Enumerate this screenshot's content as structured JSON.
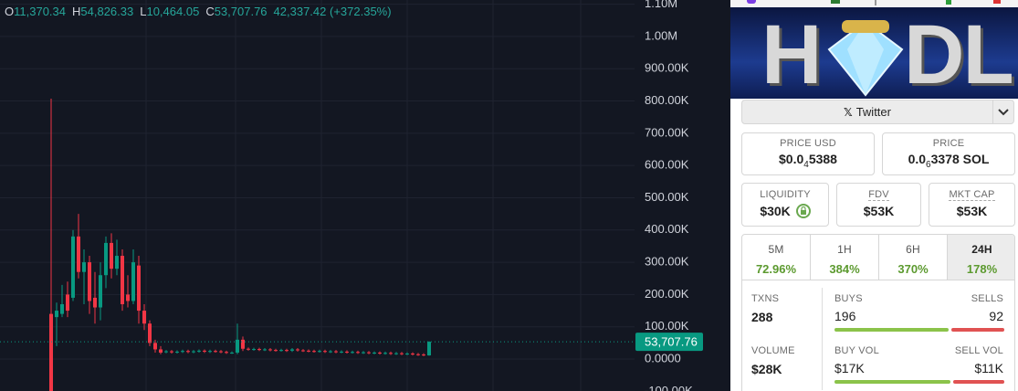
{
  "chart_data": {
    "type": "candlestick",
    "legend": [
      {
        "label": "O",
        "value": "11,370.34"
      },
      {
        "label": "H",
        "value": "54,826.33"
      },
      {
        "label": "L",
        "value": "10,464.05"
      },
      {
        "label": "C",
        "value": "53,707.76"
      }
    ],
    "change": "42,337.42 (+372.35%)",
    "up_color": "#089981",
    "down_color": "#f23645",
    "ylim": [
      -99000,
      1113000
    ],
    "yticks": [
      {
        "value": 1100000,
        "label": "1.10M"
      },
      {
        "value": 1000000,
        "label": "1.00M"
      },
      {
        "value": 900000,
        "label": "900.00K"
      },
      {
        "value": 800000,
        "label": "800.00K"
      },
      {
        "value": 700000,
        "label": "700.00K"
      },
      {
        "value": 600000,
        "label": "600.00K"
      },
      {
        "value": 500000,
        "label": "500.00K"
      },
      {
        "value": 400000,
        "label": "400.00K"
      },
      {
        "value": 300000,
        "label": "300.00K"
      },
      {
        "value": 200000,
        "label": "200.00K"
      },
      {
        "value": 100000,
        "label": "100.00K"
      },
      {
        "value": 0,
        "label": "0.0000"
      },
      {
        "value": -100000,
        "label": "-100.00K"
      }
    ],
    "grid": true,
    "last_price": {
      "value": 53707.76,
      "label": "53,707.76"
    },
    "series": {
      "open": [
        140000,
        130000,
        140000,
        200000,
        190000,
        380000,
        270000,
        300000,
        190000,
        160000,
        260000,
        360000,
        280000,
        320000,
        200000,
        180000,
        290000,
        150000,
        110000,
        50000,
        30000,
        22000,
        24000,
        21000,
        23000,
        25000,
        22000,
        24000,
        26000,
        23000,
        25000,
        24000,
        22000,
        20000,
        20000,
        60000,
        32000,
        30000,
        31000,
        29000,
        30000,
        28000,
        27000,
        28000,
        26000,
        30000,
        27000,
        26000,
        25000,
        24000,
        25000,
        23000,
        24000,
        22000,
        23000,
        21000,
        22000,
        20000,
        21000,
        19000,
        20000,
        18000,
        19000,
        17000,
        18000,
        16000,
        17000,
        15000,
        14000,
        11370.34
      ],
      "high": [
        807000,
        175000,
        230000,
        240000,
        400000,
        450000,
        340000,
        320000,
        270000,
        300000,
        380000,
        390000,
        370000,
        340000,
        260000,
        340000,
        320000,
        170000,
        120000,
        60000,
        40000,
        28000,
        28000,
        27000,
        29000,
        29000,
        28000,
        30000,
        30000,
        29000,
        29000,
        28000,
        26000,
        24000,
        110000,
        70000,
        36000,
        35000,
        35000,
        34000,
        34000,
        32000,
        32000,
        32000,
        34000,
        34000,
        31000,
        30000,
        29000,
        29000,
        29000,
        28000,
        28000,
        27000,
        27000,
        26000,
        26000,
        25000,
        25000,
        24000,
        24000,
        23000,
        23000,
        22000,
        22000,
        21000,
        21000,
        19000,
        18000,
        54826.33
      ],
      "low": [
        -99000,
        40000,
        130000,
        130000,
        180000,
        250000,
        170000,
        140000,
        110000,
        120000,
        220000,
        250000,
        260000,
        150000,
        160000,
        170000,
        110000,
        90000,
        40000,
        20000,
        15000,
        18000,
        17000,
        17000,
        19000,
        18000,
        18000,
        20000,
        19000,
        19000,
        20000,
        18000,
        16000,
        16000,
        15000,
        25000,
        26000,
        26000,
        25000,
        25000,
        24000,
        23000,
        23000,
        22000,
        22000,
        23000,
        22000,
        21000,
        20000,
        20000,
        19000,
        19000,
        18000,
        18000,
        17000,
        17000,
        16000,
        16000,
        15000,
        15000,
        14000,
        14000,
        13000,
        13000,
        12000,
        12000,
        11000,
        10000,
        9000,
        10464.05
      ],
      "close": [
        -99000,
        150000,
        170000,
        150000,
        380000,
        270000,
        300000,
        180000,
        160000,
        260000,
        360000,
        280000,
        320000,
        170000,
        180000,
        300000,
        150000,
        110000,
        50000,
        30000,
        20000,
        24000,
        21000,
        23000,
        25000,
        22000,
        24000,
        26000,
        23000,
        25000,
        24000,
        22000,
        20000,
        20000,
        60000,
        32000,
        30000,
        31000,
        29000,
        30000,
        28000,
        27000,
        28000,
        26000,
        30000,
        27000,
        26000,
        25000,
        24000,
        25000,
        23000,
        24000,
        22000,
        23000,
        21000,
        22000,
        20000,
        21000,
        19000,
        20000,
        18000,
        19000,
        17000,
        18000,
        16000,
        17000,
        15000,
        14000,
        12000,
        53707.76
      ]
    }
  },
  "token_panel": {
    "banner": {
      "left": "H",
      "right": "DL"
    },
    "social": "Twitter",
    "price_usd": {
      "label": "PRICE USD",
      "prefix": "$0.0",
      "sub": "4",
      "rest": "5388"
    },
    "price_native": {
      "label": "PRICE",
      "prefix": "0.0",
      "sub": "6",
      "rest": "3378 SOL"
    },
    "liquidity": {
      "label": "LIQUIDITY",
      "value": "$30K"
    },
    "fdv": {
      "label": "FDV",
      "value": "$53K"
    },
    "mkt_cap": {
      "label": "MKT CAP",
      "value": "$53K"
    },
    "timeframes": [
      {
        "label": "5M",
        "change": "72.96%"
      },
      {
        "label": "1H",
        "change": "384%"
      },
      {
        "label": "6H",
        "change": "370%"
      },
      {
        "label": "24H",
        "change": "178%"
      }
    ],
    "active_timeframe": 3,
    "txns": {
      "label": "TXNS",
      "value": 288
    },
    "buys": {
      "label": "BUYS",
      "value": 196
    },
    "sells": {
      "label": "SELLS",
      "value": 92
    },
    "volume": {
      "label": "VOLUME",
      "value": "$28K"
    },
    "buy_vol": {
      "label": "BUY VOL",
      "value": "$17K"
    },
    "sell_vol": {
      "label": "SELL VOL",
      "value": "$11K"
    }
  }
}
